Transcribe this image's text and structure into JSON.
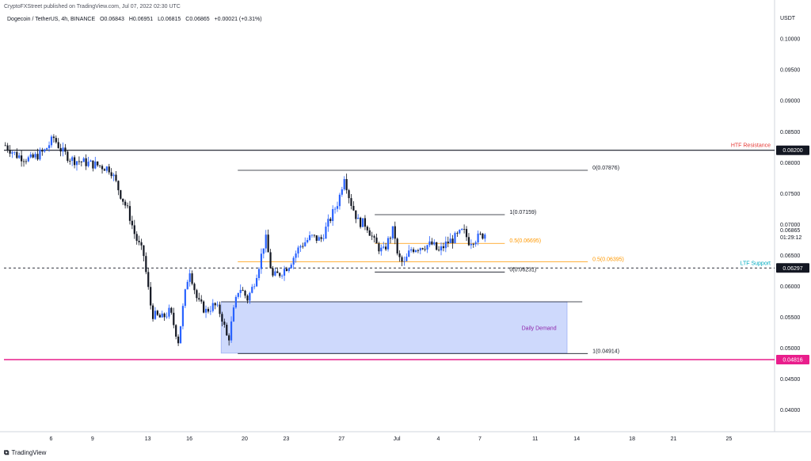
{
  "header": {
    "published": "CryptoFXStreet published on TradingView.com, Jul 07, 2022 02:30 UTC",
    "symbol": "Dogecoin / TetherUS, 4h, BINANCE",
    "open": "O0.06843",
    "high": "H0.06951",
    "low": "L0.06815",
    "close": "C0.06865",
    "change": "+0.00021 (+0.31%)"
  },
  "footer": {
    "logo": "⧉",
    "brand": "TradingView"
  },
  "colors": {
    "up": "#2962ff",
    "down": "#131722",
    "fib_orange": "#ff9800",
    "htf": "#131722",
    "support": "#131722",
    "demand_fill": "#c5d2fb",
    "pink": "#e91e8c"
  },
  "chart_data": {
    "type": "candlestick",
    "title": "Dogecoin / TetherUS, 4h, BINANCE",
    "currency_label": "USDT",
    "ylim": [
      0.0365,
      0.1045
    ],
    "y_ticks": [
      "0.10000",
      "0.09500",
      "0.09000",
      "0.08500",
      "0.08000",
      "0.07500",
      "0.07000",
      "0.06500",
      "0.06000",
      "0.05500",
      "0.05000",
      "0.04500",
      "0.04000"
    ],
    "x_ticks": [
      "6",
      "9",
      "13",
      "16",
      "20",
      "23",
      "27",
      "Jul",
      "4",
      "7",
      "11",
      "14",
      "18",
      "21",
      "25"
    ],
    "x_tick_values": [
      6,
      9,
      13,
      16,
      20,
      23,
      27,
      31,
      34,
      37,
      41,
      44,
      48,
      51,
      55
    ],
    "xlim": [
      2.6,
      58.3
    ],
    "close_path": [
      [
        2.7,
        0.0828
      ],
      [
        3.5,
        0.0812
      ],
      [
        4.5,
        0.0805
      ],
      [
        5.5,
        0.0818
      ],
      [
        6.2,
        0.084
      ],
      [
        6.8,
        0.0818
      ],
      [
        7.5,
        0.0805
      ],
      [
        8.5,
        0.08
      ],
      [
        9.5,
        0.0795
      ],
      [
        10.3,
        0.079
      ],
      [
        11.0,
        0.075
      ],
      [
        11.6,
        0.072
      ],
      [
        12.1,
        0.068
      ],
      [
        12.7,
        0.065
      ],
      [
        13.0,
        0.06
      ],
      [
        13.3,
        0.0555
      ],
      [
        14.0,
        0.0548
      ],
      [
        14.6,
        0.056
      ],
      [
        15.2,
        0.0512
      ],
      [
        15.6,
        0.0575
      ],
      [
        16.0,
        0.063
      ],
      [
        16.6,
        0.0575
      ],
      [
        17.2,
        0.056
      ],
      [
        17.8,
        0.057
      ],
      [
        18.3,
        0.0555
      ],
      [
        18.8,
        0.051
      ],
      [
        19.2,
        0.056
      ],
      [
        19.6,
        0.06
      ],
      [
        20.2,
        0.058
      ],
      [
        20.6,
        0.06
      ],
      [
        21.1,
        0.064
      ],
      [
        21.5,
        0.068
      ],
      [
        22.0,
        0.0615
      ],
      [
        22.5,
        0.062
      ],
      [
        23.2,
        0.0635
      ],
      [
        24.0,
        0.0665
      ],
      [
        24.8,
        0.068
      ],
      [
        25.5,
        0.0675
      ],
      [
        26.2,
        0.071
      ],
      [
        26.8,
        0.074
      ],
      [
        27.2,
        0.078
      ],
      [
        27.6,
        0.074
      ],
      [
        28.2,
        0.0705
      ],
      [
        28.8,
        0.07
      ],
      [
        29.4,
        0.067
      ],
      [
        30.0,
        0.0655
      ],
      [
        30.8,
        0.0695
      ],
      [
        31.0,
        0.065
      ],
      [
        31.5,
        0.0635
      ],
      [
        32.0,
        0.066
      ],
      [
        32.8,
        0.0665
      ],
      [
        33.6,
        0.0668
      ],
      [
        34.0,
        0.0655
      ],
      [
        34.6,
        0.067
      ],
      [
        35.3,
        0.068
      ],
      [
        35.8,
        0.069
      ],
      [
        36.2,
        0.0673
      ],
      [
        36.8,
        0.0678
      ],
      [
        37.5,
        0.0687
      ]
    ],
    "annotations": {
      "htf_resistance": {
        "label": "HTF Resistance",
        "value": 0.082,
        "price_label": "0.08200"
      },
      "ltf_support": {
        "label": "LTF Support",
        "value": 0.06297,
        "price_label": "0.06297"
      },
      "pink_level": {
        "value": 0.04816,
        "price_label": "0.04816"
      },
      "current_price": {
        "price": "0.06865",
        "time": "01:29:12",
        "value": 0.06865
      },
      "fib_big": [
        {
          "label": "0(0.07876)",
          "value": 0.07876,
          "x1": 19.5,
          "x2": 44.8,
          "color": "#131722"
        },
        {
          "label": "0.5(0.06395)",
          "value": 0.06395,
          "x1": 19.5,
          "x2": 44.8,
          "color": "#ff9800"
        },
        {
          "label": "1(0.04914)",
          "value": 0.04914,
          "x1": 19.5,
          "x2": 44.8,
          "color": "#131722"
        }
      ],
      "fib_small": [
        {
          "label": "1(0.07159)",
          "value": 0.07159,
          "x1": 29.4,
          "x2": 38.8,
          "color": "#131722"
        },
        {
          "label": "0.5(0.06695)",
          "value": 0.06695,
          "x1": 29.4,
          "x2": 38.8,
          "color": "#ff9800"
        },
        {
          "label": "0(0.06231)",
          "value": 0.06231,
          "x1": 29.4,
          "x2": 38.8,
          "color": "#131722"
        }
      ],
      "demand_zone": {
        "label": "Daily Demand",
        "y_top": 0.0575,
        "y_bottom": 0.0492,
        "x1": 18.3,
        "x2": 43.3,
        "top_line_x2": 44.4
      }
    }
  }
}
